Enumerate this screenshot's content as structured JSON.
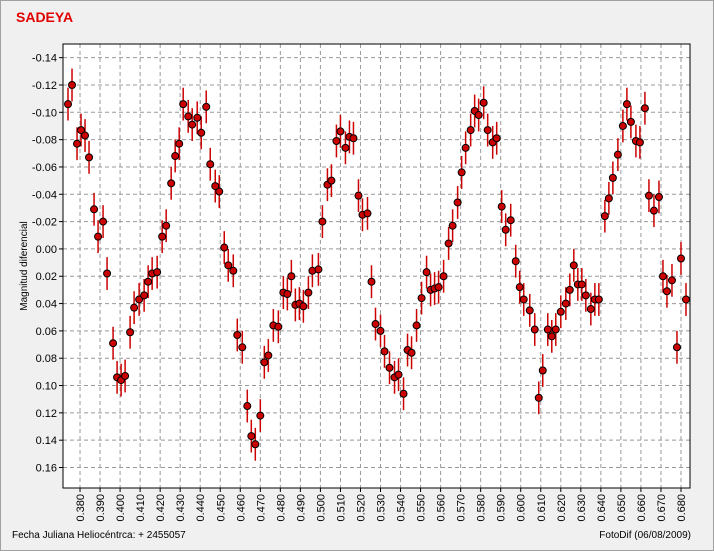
{
  "chart_data": {
    "type": "errorbar-scatter",
    "title": "SADEYA",
    "ylabel": "Magnitud diferencial",
    "xlabel": "Fecha Juliana Heliocéntrca:  + 2455057",
    "credit": "FotoDif (06/08/2009)",
    "invert_y": true,
    "grid": true,
    "xlim": [
      0.3715,
      0.6845
    ],
    "ylim": [
      -0.15,
      0.175
    ],
    "xticks": [
      {
        "value": 0.38,
        "label": "0.380"
      },
      {
        "value": 0.39,
        "label": "0.390"
      },
      {
        "value": 0.4,
        "label": "0.400"
      },
      {
        "value": 0.41,
        "label": "0.410"
      },
      {
        "value": 0.42,
        "label": "0.420"
      },
      {
        "value": 0.43,
        "label": "0.430"
      },
      {
        "value": 0.44,
        "label": "0.440"
      },
      {
        "value": 0.45,
        "label": "0.450"
      },
      {
        "value": 0.46,
        "label": "0.460"
      },
      {
        "value": 0.47,
        "label": "0.470"
      },
      {
        "value": 0.48,
        "label": "0.480"
      },
      {
        "value": 0.49,
        "label": "0.490"
      },
      {
        "value": 0.5,
        "label": "0.500"
      },
      {
        "value": 0.51,
        "label": "0.510"
      },
      {
        "value": 0.52,
        "label": "0.520"
      },
      {
        "value": 0.53,
        "label": "0.530"
      },
      {
        "value": 0.54,
        "label": "0.540"
      },
      {
        "value": 0.55,
        "label": "0.550"
      },
      {
        "value": 0.56,
        "label": "0.560"
      },
      {
        "value": 0.57,
        "label": "0.570"
      },
      {
        "value": 0.58,
        "label": "0.580"
      },
      {
        "value": 0.59,
        "label": "0.590"
      },
      {
        "value": 0.6,
        "label": "0.600"
      },
      {
        "value": 0.61,
        "label": "0.610"
      },
      {
        "value": 0.62,
        "label": "0.620"
      },
      {
        "value": 0.63,
        "label": "0.630"
      },
      {
        "value": 0.64,
        "label": "0.640"
      },
      {
        "value": 0.65,
        "label": "0.650"
      },
      {
        "value": 0.66,
        "label": "0.660"
      },
      {
        "value": 0.67,
        "label": "0.670"
      },
      {
        "value": 0.68,
        "label": "0.680"
      }
    ],
    "yticks": [
      {
        "value": -0.14,
        "label": "-0.14"
      },
      {
        "value": -0.12,
        "label": "-0.12"
      },
      {
        "value": -0.1,
        "label": "-0.10"
      },
      {
        "value": -0.08,
        "label": "-0.08"
      },
      {
        "value": -0.06,
        "label": "-0.06"
      },
      {
        "value": -0.04,
        "label": "-0.04"
      },
      {
        "value": -0.02,
        "label": "-0.02"
      },
      {
        "value": 0,
        "label": "0.00"
      },
      {
        "value": 0.02,
        "label": "0.02"
      },
      {
        "value": 0.04,
        "label": "0.04"
      },
      {
        "value": 0.06,
        "label": "0.06"
      },
      {
        "value": 0.08,
        "label": "0.08"
      },
      {
        "value": 0.1,
        "label": "0.10"
      },
      {
        "value": 0.12,
        "label": "0.12"
      },
      {
        "value": 0.14,
        "label": "0.14"
      },
      {
        "value": 0.16,
        "label": "0.16"
      }
    ],
    "series": [
      {
        "color": "#cc0000",
        "error": 0.012,
        "x": [
          0.374,
          0.376,
          0.3785,
          0.3805,
          0.3825,
          0.3845,
          0.387,
          0.389,
          0.3915,
          0.3935,
          0.3965,
          0.3985,
          0.4005,
          0.4025,
          0.405,
          0.407,
          0.4095,
          0.412,
          0.414,
          0.416,
          0.4185,
          0.421,
          0.423,
          0.4255,
          0.4275,
          0.4295,
          0.4315,
          0.434,
          0.436,
          0.4385,
          0.4405,
          0.443,
          0.445,
          0.4475,
          0.4495,
          0.452,
          0.454,
          0.4565,
          0.4585,
          0.461,
          0.4635,
          0.4655,
          0.4675,
          0.47,
          0.472,
          0.474,
          0.4765,
          0.479,
          0.4815,
          0.4835,
          0.4855,
          0.4875,
          0.4895,
          0.4915,
          0.494,
          0.496,
          0.499,
          0.501,
          0.5035,
          0.5055,
          0.508,
          0.51,
          0.5125,
          0.5145,
          0.5165,
          0.519,
          0.521,
          0.5235,
          0.5255,
          0.5275,
          0.53,
          0.532,
          0.5345,
          0.537,
          0.539,
          0.5415,
          0.5435,
          0.5455,
          0.548,
          0.5505,
          0.553,
          0.555,
          0.557,
          0.559,
          0.5615,
          0.564,
          0.566,
          0.5685,
          0.5705,
          0.5725,
          0.575,
          0.577,
          0.579,
          0.5815,
          0.5835,
          0.586,
          0.588,
          0.5905,
          0.5925,
          0.595,
          0.5975,
          0.5995,
          0.6015,
          0.6045,
          0.607,
          0.609,
          0.611,
          0.6135,
          0.6155,
          0.6175,
          0.62,
          0.6225,
          0.6245,
          0.6265,
          0.6285,
          0.6305,
          0.6325,
          0.635,
          0.637,
          0.639,
          0.642,
          0.644,
          0.646,
          0.6485,
          0.651,
          0.653,
          0.655,
          0.6575,
          0.6595,
          0.662,
          0.664,
          0.6665,
          0.669,
          0.671,
          0.673,
          0.6755,
          0.678,
          0.68,
          0.6825
        ],
        "values": [
          -0.106,
          -0.12,
          -0.077,
          -0.087,
          -0.083,
          -0.067,
          -0.029,
          -0.009,
          -0.02,
          0.018,
          0.069,
          0.094,
          0.096,
          0.093,
          0.061,
          0.043,
          0.037,
          0.034,
          0.024,
          0.018,
          0.017,
          -0.009,
          -0.017,
          -0.048,
          -0.068,
          -0.077,
          -0.106,
          -0.097,
          -0.091,
          -0.096,
          -0.085,
          -0.104,
          -0.062,
          -0.046,
          -0.042,
          -0.001,
          0.012,
          0.016,
          0.063,
          0.072,
          0.115,
          0.137,
          0.143,
          0.122,
          0.083,
          0.078,
          0.056,
          0.057,
          0.032,
          0.033,
          0.02,
          0.041,
          0.04,
          0.042,
          0.032,
          0.016,
          0.015,
          -0.02,
          -0.047,
          -0.05,
          -0.079,
          -0.086,
          -0.074,
          -0.082,
          -0.081,
          -0.039,
          -0.025,
          -0.026,
          0.024,
          0.055,
          0.06,
          0.075,
          0.087,
          0.094,
          0.092,
          0.106,
          0.074,
          0.076,
          0.056,
          0.036,
          0.017,
          0.03,
          0.029,
          0.028,
          0.02,
          -0.004,
          -0.017,
          -0.034,
          -0.056,
          -0.074,
          -0.087,
          -0.101,
          -0.098,
          -0.107,
          -0.087,
          -0.078,
          -0.081,
          -0.031,
          -0.014,
          -0.021,
          0.009,
          0.028,
          0.037,
          0.045,
          0.059,
          0.109,
          0.089,
          0.059,
          0.064,
          0.059,
          0.046,
          0.04,
          0.03,
          0.012,
          0.026,
          0.026,
          0.034,
          0.044,
          0.037,
          0.037,
          -0.024,
          -0.037,
          -0.052,
          -0.069,
          -0.09,
          -0.106,
          -0.093,
          -0.079,
          -0.078,
          -0.103,
          -0.039,
          -0.028,
          -0.038,
          0.02,
          0.031,
          0.023,
          0.072,
          0.007,
          0.037
        ]
      }
    ]
  }
}
